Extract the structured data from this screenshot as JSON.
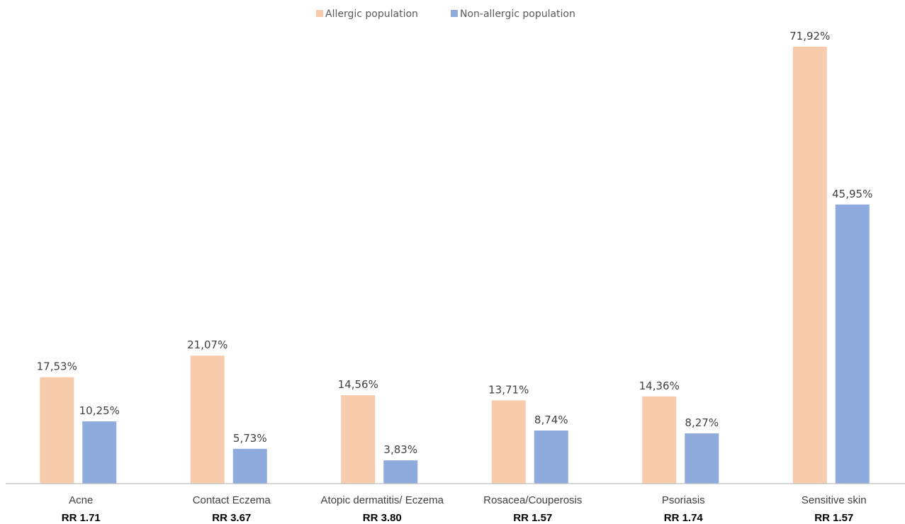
{
  "chart_data": {
    "type": "bar",
    "categories": [
      "Acne",
      "Contact Eczema",
      "Atopic dermatitis/ Eczema",
      "Rosacea/Couperosis",
      "Psoriasis",
      "Sensitive skin"
    ],
    "rr_labels": [
      "RR 1.71",
      "RR 3.67",
      "RR 3.80",
      "RR 1.57",
      "RR 1.74",
      "RR 1.57"
    ],
    "series": [
      {
        "name": "Allergic population",
        "color": "#F8CBAD",
        "values": [
          17.53,
          21.07,
          14.56,
          13.71,
          14.36,
          71.92
        ],
        "labels": [
          "17,53%",
          "21,07%",
          "14,56%",
          "13,71%",
          "14,36%",
          "71,92%"
        ]
      },
      {
        "name": "Non-allergic population",
        "color": "#8FAADC",
        "values": [
          10.25,
          5.73,
          3.83,
          8.74,
          8.27,
          45.95
        ],
        "labels": [
          "10,25%",
          "5,73%",
          "3,83%",
          "8,74%",
          "8,27%",
          "45,95%"
        ]
      }
    ],
    "title": "",
    "xlabel": "",
    "ylabel": "",
    "ylim": [
      0,
      72
    ],
    "grid": false,
    "legend_position": "top-center",
    "axis_color": "#BFBFBF"
  }
}
